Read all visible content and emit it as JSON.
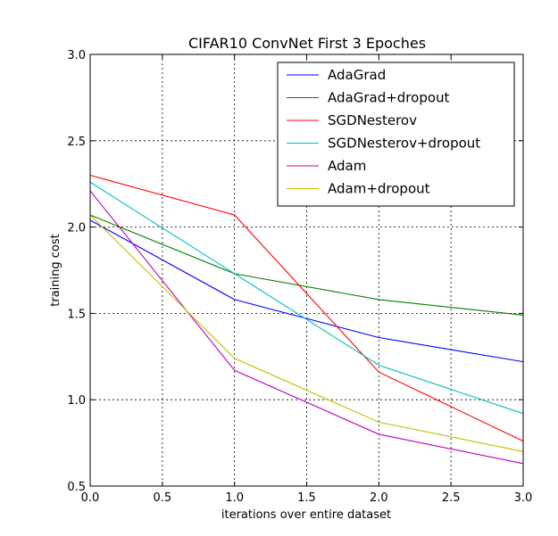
{
  "chart_data": {
    "type": "line",
    "title": "CIFAR10 ConvNet First 3 Epoches",
    "xlabel": "iterations over entire dataset",
    "ylabel": "training cost",
    "xlim": [
      0.0,
      3.0
    ],
    "ylim": [
      0.5,
      3.0
    ],
    "xticks": [
      "0.0",
      "0.5",
      "1.0",
      "1.5",
      "2.0",
      "2.5",
      "3.0"
    ],
    "yticks": [
      "0.5",
      "1.0",
      "1.5",
      "2.0",
      "2.5",
      "3.0"
    ],
    "grid": true,
    "legend_position": "top-right",
    "x": [
      0,
      1,
      2,
      3
    ],
    "series": [
      {
        "name": "AdaGrad",
        "color": "#0000ff",
        "values": [
          2.04,
          1.58,
          1.36,
          1.22
        ]
      },
      {
        "name": "AdaGrad+dropout",
        "color": "#008000",
        "values": [
          2.07,
          1.73,
          1.58,
          1.49
        ]
      },
      {
        "name": "SGDNesterov",
        "color": "#ff0000",
        "values": [
          2.3,
          2.07,
          1.16,
          0.76
        ]
      },
      {
        "name": "SGDNesterov+dropout",
        "color": "#00bfbf",
        "values": [
          2.26,
          1.73,
          1.2,
          0.92
        ]
      },
      {
        "name": "Adam",
        "color": "#bf00bf",
        "values": [
          2.21,
          1.17,
          0.8,
          0.63
        ]
      },
      {
        "name": "Adam+dropout",
        "color": "#bfbf00",
        "values": [
          2.07,
          1.24,
          0.87,
          0.7
        ]
      }
    ]
  }
}
